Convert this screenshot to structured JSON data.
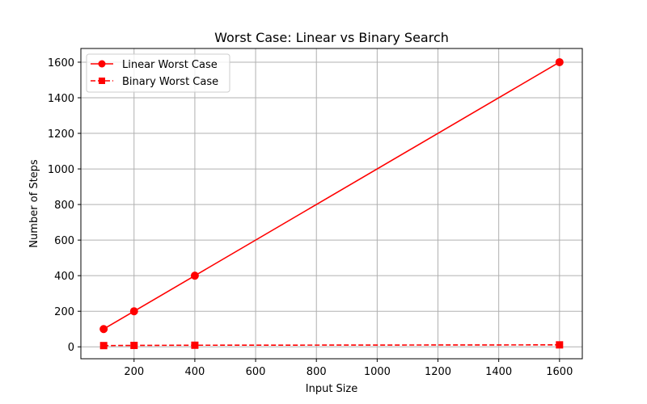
{
  "chart_data": {
    "type": "line",
    "title": "Worst Case: Linear vs Binary Search",
    "xlabel": "Input Size",
    "ylabel": "Number of Steps",
    "xlim": [
      25,
      1675
    ],
    "ylim": [
      -67,
      1677
    ],
    "xticks": [
      200,
      400,
      600,
      800,
      1000,
      1200,
      1400,
      1600
    ],
    "yticks": [
      0,
      200,
      400,
      600,
      800,
      1000,
      1200,
      1400,
      1600
    ],
    "grid": true,
    "legend_position": "top-left",
    "series": [
      {
        "name": "Linear Worst Case",
        "x": [
          100,
          200,
          400,
          1600
        ],
        "y": [
          100,
          200,
          400,
          1600
        ],
        "color": "#ff0000",
        "line_style": "solid",
        "marker": "circle"
      },
      {
        "name": "Binary Worst Case",
        "x": [
          100,
          200,
          400,
          1600
        ],
        "y": [
          7,
          8,
          9,
          11
        ],
        "color": "#ff0000",
        "line_style": "dashed",
        "marker": "square"
      }
    ]
  }
}
